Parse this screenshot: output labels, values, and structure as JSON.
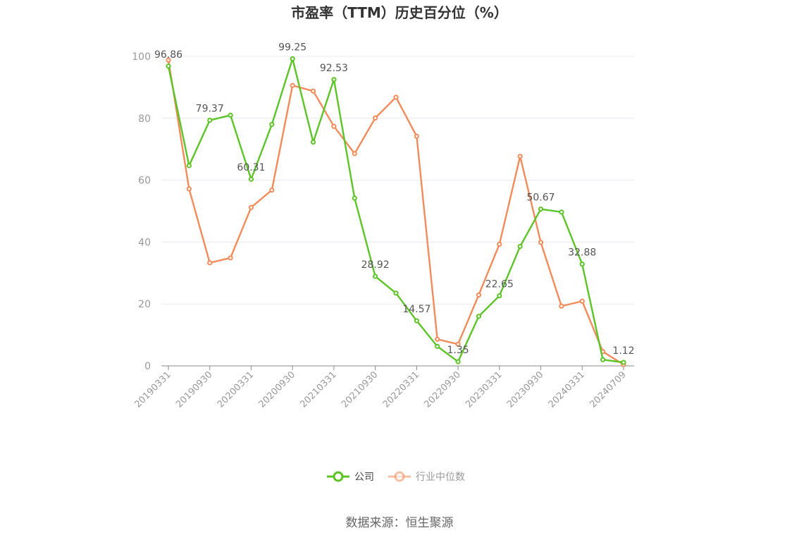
{
  "chart_data": {
    "type": "line",
    "title": "市盈率（TTM）历史百分位（%）",
    "source": "数据来源：恒生聚源",
    "ylim": [
      0,
      100
    ],
    "yticks": [
      0,
      20,
      40,
      60,
      80,
      100
    ],
    "grid": true,
    "legend_position": "bottom",
    "x": [
      "20190331",
      "20190630",
      "20190930",
      "20191231",
      "20200331",
      "20200630",
      "20200930",
      "20201231",
      "20210331",
      "20210630",
      "20210930",
      "20211231",
      "20220331",
      "20220630",
      "20220930",
      "20221231",
      "20230331",
      "20230630",
      "20230930",
      "20231231",
      "20240331",
      "20240630",
      "20240709"
    ],
    "x_tick_labels": [
      "20190331",
      "20190930",
      "20200331",
      "20200930",
      "20210331",
      "20210930",
      "20220331",
      "20220930",
      "20230331",
      "20230930",
      "20240331",
      "20240709"
    ],
    "series": [
      {
        "name": "公司",
        "color": "#5cc427",
        "values": [
          96.86,
          64.7,
          79.37,
          81.0,
          60.31,
          78.0,
          99.25,
          72.3,
          92.53,
          54.2,
          28.92,
          23.5,
          14.57,
          6.3,
          1.35,
          16.0,
          22.65,
          38.6,
          50.67,
          49.7,
          32.88,
          2.0,
          1.12
        ],
        "labels": [
          "96.86",
          null,
          "79.37",
          null,
          "60.31",
          null,
          "99.25",
          null,
          "92.53",
          null,
          "28.92",
          null,
          "14.57",
          null,
          "1.35",
          null,
          "22.65",
          null,
          "50.67",
          null,
          "32.88",
          null,
          "1.12"
        ]
      },
      {
        "name": "行业中位数",
        "color": "#f28b5a",
        "values": [
          98.8,
          57.2,
          33.3,
          34.9,
          51.2,
          56.8,
          90.6,
          88.8,
          77.4,
          68.6,
          80.1,
          86.8,
          74.2,
          8.6,
          7.0,
          22.9,
          39.3,
          67.7,
          39.9,
          19.3,
          20.9,
          4.6,
          0.4
        ]
      }
    ]
  }
}
